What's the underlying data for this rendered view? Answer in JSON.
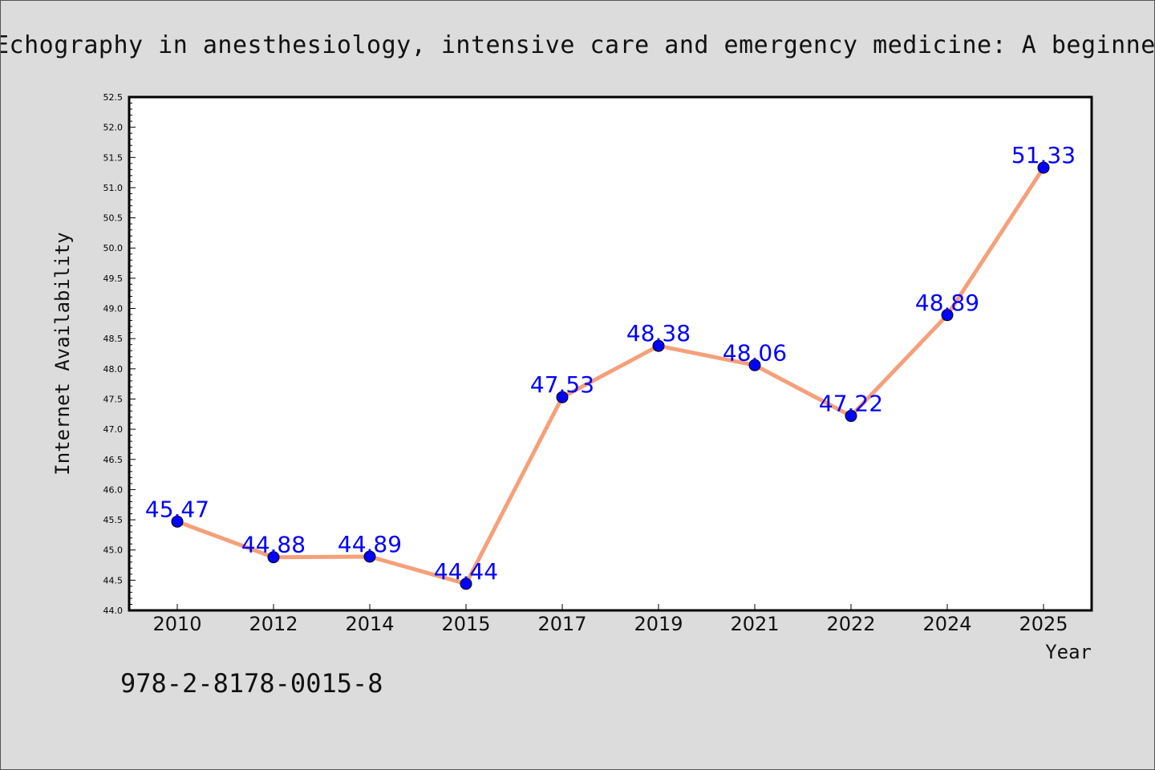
{
  "header": {
    "title": "Echography in anesthesiology, intensive care and emergency medicine: A beginner"
  },
  "footer": {
    "isbn": "978-2-8178-0015-8"
  },
  "colors": {
    "background": "#dcdcdc",
    "plot_background": "#ffffff",
    "line": "#f5a07a",
    "marker": "#0000ff",
    "data_label": "#0000ff"
  },
  "chart_data": {
    "type": "line",
    "title": "Echography in anesthesiology, intensive care and emergency medicine: A beginner",
    "xlabel": "Year",
    "ylabel": "Internet Availability",
    "categories": [
      "2010",
      "2012",
      "2014",
      "2015",
      "2017",
      "2019",
      "2021",
      "2022",
      "2024",
      "2025"
    ],
    "series": [
      {
        "values": [
          45.47,
          44.88,
          44.89,
          44.44,
          47.53,
          48.38,
          48.06,
          47.22,
          48.89,
          51.33
        ]
      }
    ],
    "data_labels": [
      "45.47",
      "44.88",
      "44.89",
      "44.44",
      "47.53",
      "48.38",
      "48.06",
      "47.22",
      "48.89",
      "51.33"
    ],
    "ylim": [
      44.0,
      52.5
    ],
    "y_ticks": [
      "44.0",
      "44.5",
      "45.0",
      "45.5",
      "46.0",
      "46.5",
      "47.0",
      "47.5",
      "48.0",
      "48.5",
      "49.0",
      "49.5",
      "50.0",
      "50.5",
      "51.0",
      "51.5",
      "52.0",
      "52.5"
    ],
    "grid": false,
    "legend": "none",
    "marker": "circle"
  }
}
